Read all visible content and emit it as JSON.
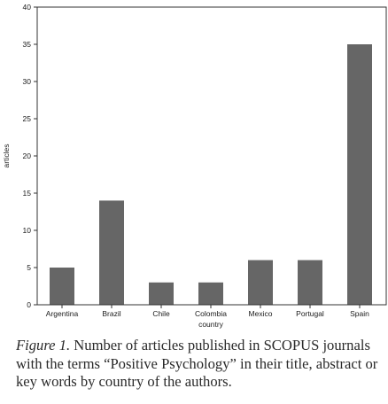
{
  "chart_data": {
    "type": "bar",
    "categories": [
      "Argentina",
      "Brazil",
      "Chile",
      "Colombia",
      "Mexico",
      "Portugal",
      "Spain"
    ],
    "values": [
      5,
      14,
      3,
      3,
      6,
      6,
      35
    ],
    "xlabel": "country",
    "ylabel": "articles",
    "ylim": [
      0,
      40
    ],
    "yticks": [
      0,
      5,
      10,
      15,
      20,
      25,
      30,
      35,
      40
    ],
    "grid": false,
    "bar_color": "#666666"
  },
  "caption": {
    "label": "Figure 1.",
    "text": " Number of articles published in SCOPUS journals with the terms “Positive Psychology” in their title, abstract or key words by country of the authors."
  }
}
